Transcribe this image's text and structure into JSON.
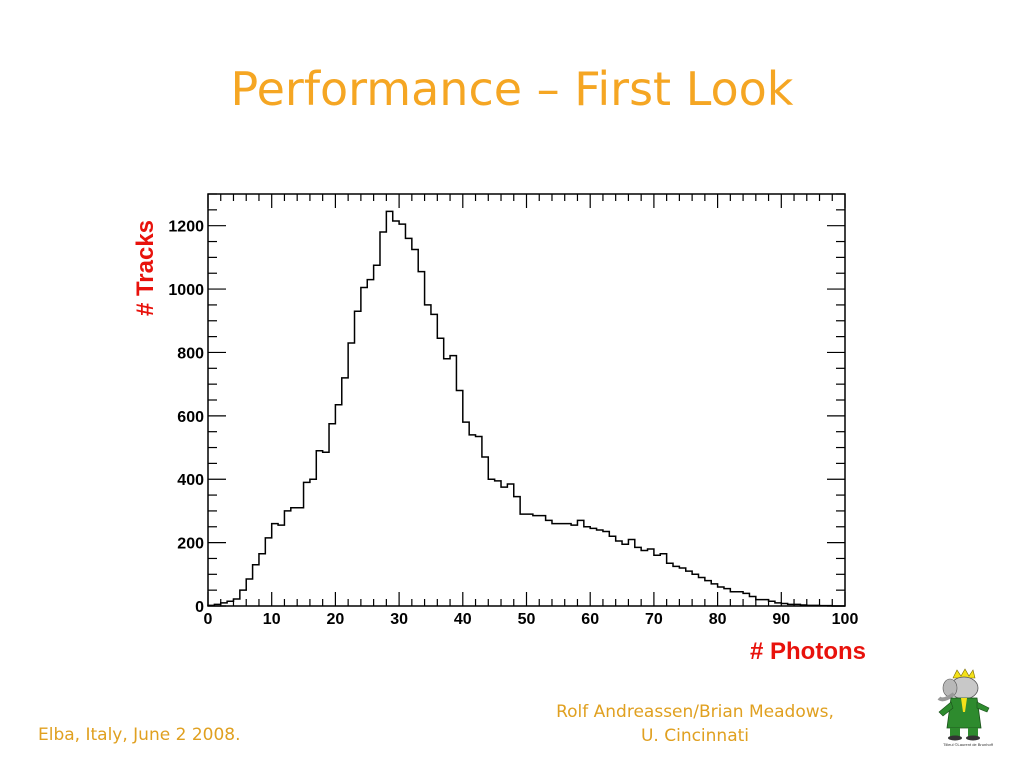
{
  "slide": {
    "title": "Performance – First Look",
    "footer_left": "Elba, Italy, June 2 2008.",
    "footer_right_line1": "Rolf Andreassen/Brian Meadows,",
    "footer_right_line2": "U. Cincinnati",
    "mascot_caption": "Tilleul ©Laurent de Brunhoff"
  },
  "colors": {
    "title": "#f5a623",
    "axis_label": "#e8120c",
    "footer": "#e0a020",
    "line": "#000000"
  },
  "chart_data": {
    "type": "histogram",
    "title": "",
    "xlabel": "# Photons",
    "ylabel": "# Tracks",
    "xlim": [
      0,
      100
    ],
    "ylim": [
      0,
      1300
    ],
    "bin_width": 1,
    "x_ticks": [
      0,
      10,
      20,
      30,
      40,
      50,
      60,
      70,
      80,
      90,
      100
    ],
    "y_ticks": [
      0,
      200,
      400,
      600,
      800,
      1000,
      1200
    ],
    "grid": false,
    "values": [
      2,
      5,
      10,
      15,
      22,
      50,
      85,
      130,
      165,
      215,
      260,
      255,
      300,
      310,
      310,
      390,
      400,
      490,
      485,
      575,
      635,
      720,
      830,
      930,
      1005,
      1030,
      1075,
      1180,
      1245,
      1215,
      1205,
      1160,
      1125,
      1055,
      950,
      920,
      845,
      780,
      790,
      680,
      580,
      540,
      535,
      470,
      400,
      395,
      375,
      385,
      345,
      290,
      290,
      285,
      285,
      270,
      260,
      260,
      260,
      255,
      270,
      250,
      245,
      240,
      235,
      220,
      205,
      195,
      210,
      185,
      175,
      180,
      160,
      165,
      135,
      125,
      120,
      110,
      100,
      90,
      80,
      70,
      60,
      55,
      45,
      45,
      40,
      30,
      20,
      20,
      15,
      10,
      8,
      5,
      5,
      3,
      2,
      2,
      1,
      1,
      0,
      0
    ]
  }
}
